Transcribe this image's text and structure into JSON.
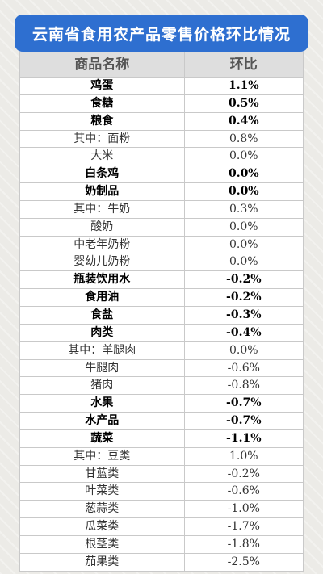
{
  "title": "云南省食用农产品零售价格环比情况",
  "table": {
    "headers": [
      "商品名称",
      "环比"
    ],
    "rows": [
      {
        "name": "鸡蛋",
        "value": "1.1%",
        "bold": true
      },
      {
        "name": "食糖",
        "value": "0.5%",
        "bold": true
      },
      {
        "name": "粮食",
        "value": "0.4%",
        "bold": true
      },
      {
        "name": "其中：面粉",
        "value": "0.8%",
        "bold": false
      },
      {
        "name": "大米",
        "value": "0.0%",
        "bold": false
      },
      {
        "name": "白条鸡",
        "value": "0.0%",
        "bold": true
      },
      {
        "name": "奶制品",
        "value": "0.0%",
        "bold": true
      },
      {
        "name": "其中：牛奶",
        "value": "0.3%",
        "bold": false
      },
      {
        "name": "酸奶",
        "value": "0.0%",
        "bold": false
      },
      {
        "name": "中老年奶粉",
        "value": "0.0%",
        "bold": false
      },
      {
        "name": "婴幼儿奶粉",
        "value": "0.0%",
        "bold": false
      },
      {
        "name": "瓶装饮用水",
        "value": "-0.2%",
        "bold": true
      },
      {
        "name": "食用油",
        "value": "-0.2%",
        "bold": true
      },
      {
        "name": "食盐",
        "value": "-0.3%",
        "bold": true
      },
      {
        "name": "肉类",
        "value": "-0.4%",
        "bold": true
      },
      {
        "name": "其中：羊腿肉",
        "value": "0.0%",
        "bold": false
      },
      {
        "name": "牛腿肉",
        "value": "-0.6%",
        "bold": false
      },
      {
        "name": "猪肉",
        "value": "-0.8%",
        "bold": false
      },
      {
        "name": "水果",
        "value": "-0.7%",
        "bold": true
      },
      {
        "name": "水产品",
        "value": "-0.7%",
        "bold": true
      },
      {
        "name": "蔬菜",
        "value": "-1.1%",
        "bold": true
      },
      {
        "name": "其中：豆类",
        "value": "1.0%",
        "bold": false
      },
      {
        "name": "甘蓝类",
        "value": "-0.2%",
        "bold": false
      },
      {
        "name": "叶菜类",
        "value": "-0.6%",
        "bold": false
      },
      {
        "name": "葱蒜类",
        "value": "-1.0%",
        "bold": false
      },
      {
        "name": "瓜菜类",
        "value": "-1.7%",
        "bold": false
      },
      {
        "name": "根茎类",
        "value": "-1.8%",
        "bold": false
      },
      {
        "name": "茄果类",
        "value": "-2.5%",
        "bold": false
      }
    ]
  }
}
